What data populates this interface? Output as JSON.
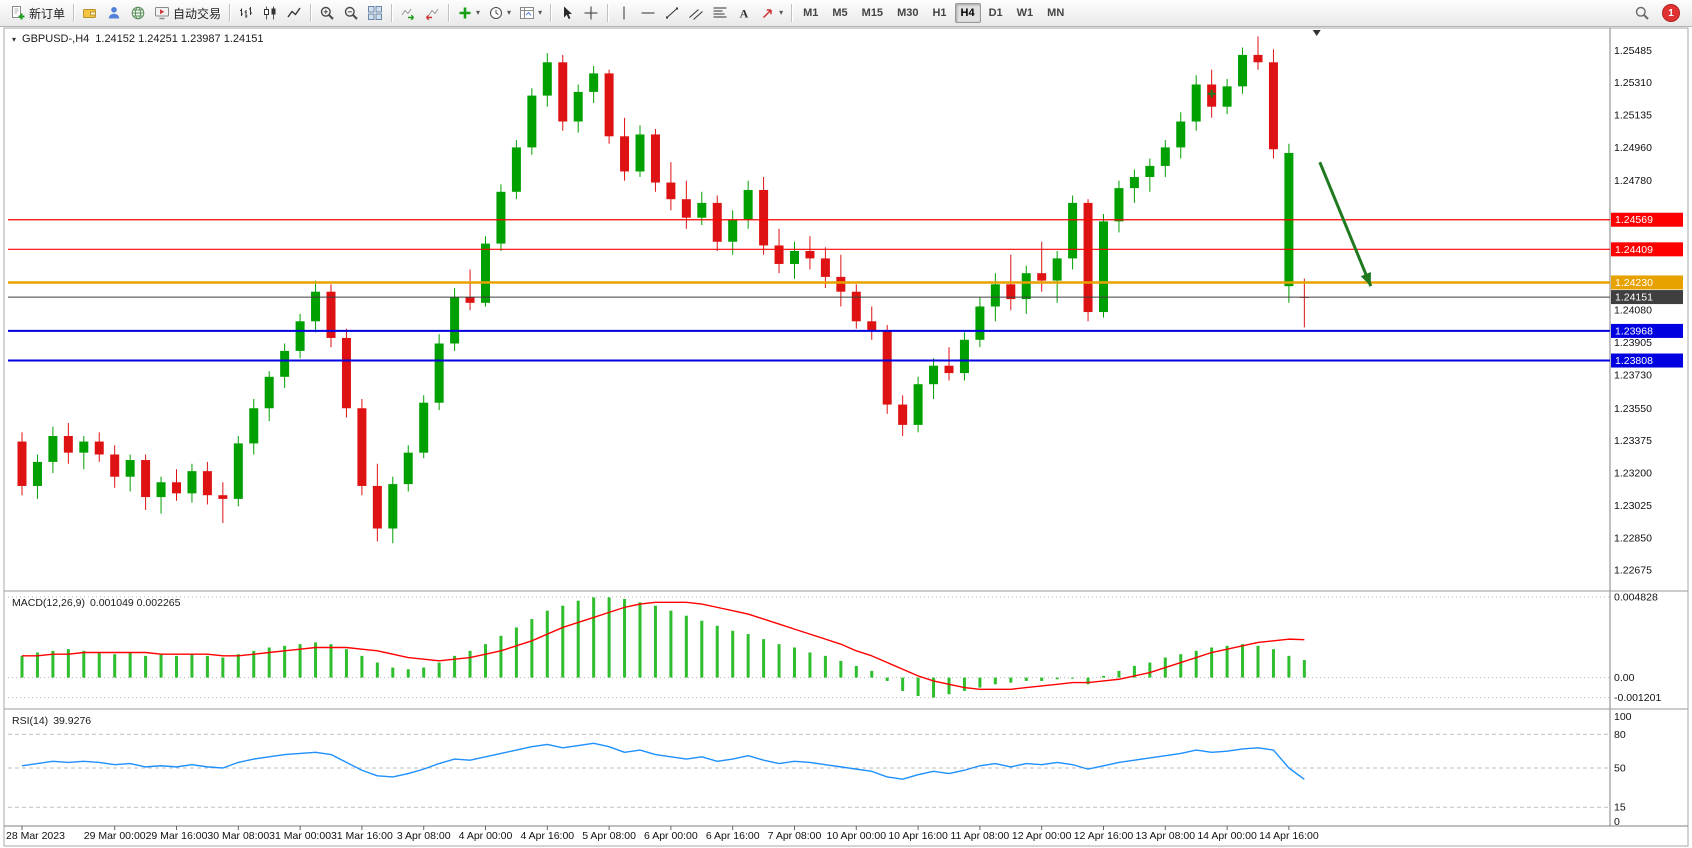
{
  "toolbar": {
    "groups": [
      {
        "items": [
          {
            "name": "new-order-button",
            "icon": "new-order",
            "label": "新订单"
          }
        ]
      },
      {
        "items": [
          {
            "name": "wallet-button",
            "icon": "wallet"
          },
          {
            "name": "profile-button",
            "icon": "person"
          },
          {
            "name": "market-button",
            "icon": "globe"
          },
          {
            "name": "autotrading-button",
            "icon": "autotrading",
            "label": "自动交易"
          }
        ]
      },
      {
        "items": [
          {
            "name": "bar-chart-button",
            "icon": "bars"
          },
          {
            "name": "candlestick-button",
            "icon": "candles"
          },
          {
            "name": "line-chart-button",
            "icon": "linechart"
          }
        ]
      },
      {
        "items": [
          {
            "name": "zoom-in-button",
            "icon": "zoom-in"
          },
          {
            "name": "zoom-out-button",
            "icon": "zoom-out"
          },
          {
            "name": "tile-windows-button",
            "icon": "tile"
          }
        ]
      },
      {
        "items": [
          {
            "name": "auto-scroll-button",
            "icon": "autoscroll"
          },
          {
            "name": "chart-shift-button",
            "icon": "chartshift"
          }
        ]
      },
      {
        "items": [
          {
            "name": "add-indicator-button",
            "icon": "add-indicator",
            "dropdown": true
          },
          {
            "name": "periods-button",
            "icon": "clock",
            "dropdown": true
          },
          {
            "name": "templates-button",
            "icon": "template",
            "dropdown": true
          }
        ]
      },
      {
        "items": [
          {
            "name": "cursor-button",
            "icon": "cursor"
          },
          {
            "name": "crosshair-button",
            "icon": "crosshair"
          }
        ]
      },
      {
        "items": [
          {
            "name": "vertical-line-button",
            "icon": "vline"
          },
          {
            "name": "horizontal-line-button",
            "icon": "hline"
          },
          {
            "name": "trendline-button",
            "icon": "trendline"
          },
          {
            "name": "channel-button",
            "icon": "channel"
          },
          {
            "name": "fibonacci-button",
            "icon": "fibo"
          },
          {
            "name": "text-button",
            "icon": "text"
          },
          {
            "name": "arrows-button",
            "icon": "arrows",
            "dropdown": true
          }
        ]
      }
    ],
    "timeframes": [
      "M1",
      "M5",
      "M15",
      "M30",
      "H1",
      "H4",
      "D1",
      "W1",
      "MN"
    ],
    "active_timeframe": "H4",
    "right_items": [
      {
        "name": "symbol-search-button",
        "icon": "search"
      }
    ],
    "notification_count": "1"
  },
  "chart": {
    "title_symbol": "GBPUSD-,H4",
    "title_ohlc": "1.24152 1.24251 1.23987 1.24151"
  },
  "colors": {
    "candle_up": "#00A000",
    "candle_down": "#DE1212",
    "hline_red": "#FF0000",
    "hline_blue": "#0000E0",
    "hline_gold": "#E8A200",
    "price_line": "#3F3F3F",
    "macd_hist": "#2EBE2E",
    "macd_signal": "#FF0000",
    "rsi_line": "#1E90FF",
    "arrow_green": "#1F7A1F"
  },
  "chart_data": {
    "type": "candlestick",
    "symbol": "GBPUSD-",
    "timeframe": "H4",
    "ohlc_current": {
      "open": "1.24152",
      "high": "1.24251",
      "low": "1.23987",
      "close": "1.24151"
    },
    "price_axis": {
      "min": 1.226,
      "max": 1.256,
      "ticks": [
        [
          1.25485,
          "1.25485"
        ],
        [
          1.2531,
          "1.25310"
        ],
        [
          1.25135,
          "1.25135"
        ],
        [
          1.2496,
          "1.24960"
        ],
        [
          1.2478,
          "1.24780"
        ],
        [
          1.2408,
          "1.24080"
        ],
        [
          1.23905,
          "1.23905"
        ],
        [
          1.2373,
          "1.23730"
        ],
        [
          1.2355,
          "1.23550"
        ],
        [
          1.23375,
          "1.23375"
        ],
        [
          1.232,
          "1.23200"
        ],
        [
          1.23025,
          "1.23025"
        ],
        [
          1.2285,
          "1.22850"
        ],
        [
          1.22675,
          "1.22675"
        ]
      ]
    },
    "hlines": [
      {
        "v": 1.24569,
        "color": "#FF0000",
        "w": 1.2,
        "label": "1.24569"
      },
      {
        "v": 1.24409,
        "color": "#FF0000",
        "w": 1.2,
        "label": "1.24409"
      },
      {
        "v": 1.2423,
        "color": "#E8A200",
        "w": 2.5,
        "label": "1.24230"
      },
      {
        "v": 1.23968,
        "color": "#0000E0",
        "w": 2,
        "label": "1.23968"
      },
      {
        "v": 1.23808,
        "color": "#0000E0",
        "w": 2,
        "label": "1.23808"
      }
    ],
    "current_price": {
      "v": 1.24151,
      "label": "1.24151"
    },
    "candles": [
      [
        1.2337,
        1.2342,
        1.2308,
        1.2313
      ],
      [
        1.2313,
        1.233,
        1.2306,
        1.2326
      ],
      [
        1.2326,
        1.2345,
        1.232,
        1.234
      ],
      [
        1.234,
        1.2347,
        1.2325,
        1.2331
      ],
      [
        1.2331,
        1.234,
        1.2322,
        1.2337
      ],
      [
        1.2337,
        1.2342,
        1.2326,
        1.233
      ],
      [
        1.233,
        1.2335,
        1.2312,
        1.2318
      ],
      [
        1.2318,
        1.233,
        1.231,
        1.2327
      ],
      [
        1.2327,
        1.233,
        1.23,
        1.2307
      ],
      [
        1.2307,
        1.2318,
        1.2298,
        1.2315
      ],
      [
        1.2315,
        1.2322,
        1.2305,
        1.2309
      ],
      [
        1.2309,
        1.2325,
        1.2304,
        1.2321
      ],
      [
        1.2321,
        1.2326,
        1.2303,
        1.2308
      ],
      [
        1.2308,
        1.2315,
        1.2293,
        1.2306
      ],
      [
        1.2306,
        1.234,
        1.2302,
        1.2336
      ],
      [
        1.2336,
        1.236,
        1.233,
        1.2355
      ],
      [
        1.2355,
        1.2375,
        1.2348,
        1.2372
      ],
      [
        1.2372,
        1.239,
        1.2366,
        1.2386
      ],
      [
        1.2386,
        1.2406,
        1.2382,
        1.2402
      ],
      [
        1.2402,
        1.2424,
        1.2396,
        1.2418
      ],
      [
        1.2418,
        1.2422,
        1.2388,
        1.2393
      ],
      [
        1.2393,
        1.2398,
        1.235,
        1.2355
      ],
      [
        1.2355,
        1.236,
        1.2308,
        1.2313
      ],
      [
        1.2313,
        1.2325,
        1.2283,
        1.229
      ],
      [
        1.229,
        1.2318,
        1.2282,
        1.2314
      ],
      [
        1.2314,
        1.2335,
        1.231,
        1.2331
      ],
      [
        1.2331,
        1.2362,
        1.2328,
        1.2358
      ],
      [
        1.2358,
        1.2395,
        1.2354,
        1.239
      ],
      [
        1.239,
        1.242,
        1.2386,
        1.2415
      ],
      [
        1.2415,
        1.243,
        1.2408,
        1.2412
      ],
      [
        1.2412,
        1.2448,
        1.241,
        1.2444
      ],
      [
        1.2444,
        1.2476,
        1.244,
        1.2472
      ],
      [
        1.2472,
        1.25,
        1.2468,
        1.2496
      ],
      [
        1.2496,
        1.2528,
        1.2492,
        1.2524
      ],
      [
        1.2524,
        1.2547,
        1.2518,
        1.2542
      ],
      [
        1.2542,
        1.2546,
        1.2505,
        1.251
      ],
      [
        1.251,
        1.253,
        1.2504,
        1.2526
      ],
      [
        1.2526,
        1.254,
        1.252,
        1.2536
      ],
      [
        1.2536,
        1.2538,
        1.2498,
        1.2502
      ],
      [
        1.2502,
        1.2512,
        1.2478,
        1.2483
      ],
      [
        1.2483,
        1.2508,
        1.248,
        1.2503
      ],
      [
        1.2503,
        1.2506,
        1.2472,
        1.2477
      ],
      [
        1.2477,
        1.2488,
        1.2462,
        1.2468
      ],
      [
        1.2468,
        1.2478,
        1.2452,
        1.2458
      ],
      [
        1.2458,
        1.2472,
        1.2454,
        1.2466
      ],
      [
        1.2466,
        1.247,
        1.244,
        1.2445
      ],
      [
        1.2445,
        1.2462,
        1.2438,
        1.2457
      ],
      [
        1.2457,
        1.2478,
        1.2452,
        1.2473
      ],
      [
        1.2473,
        1.248,
        1.2438,
        1.2443
      ],
      [
        1.2443,
        1.2452,
        1.2428,
        1.2433
      ],
      [
        1.2433,
        1.2445,
        1.2425,
        1.244
      ],
      [
        1.244,
        1.2448,
        1.243,
        1.2436
      ],
      [
        1.2436,
        1.2442,
        1.242,
        1.2426
      ],
      [
        1.2426,
        1.2438,
        1.241,
        1.2418
      ],
      [
        1.2418,
        1.2422,
        1.2398,
        1.2402
      ],
      [
        1.2402,
        1.241,
        1.2392,
        1.2397
      ],
      [
        1.2397,
        1.24,
        1.2352,
        1.2357
      ],
      [
        1.2357,
        1.2362,
        1.234,
        1.2346
      ],
      [
        1.2346,
        1.2372,
        1.2342,
        1.2368
      ],
      [
        1.2368,
        1.2382,
        1.236,
        1.2378
      ],
      [
        1.2378,
        1.2388,
        1.237,
        1.2374
      ],
      [
        1.2374,
        1.2396,
        1.237,
        1.2392
      ],
      [
        1.2392,
        1.2415,
        1.2388,
        1.241
      ],
      [
        1.241,
        1.2428,
        1.2402,
        1.2422
      ],
      [
        1.2422,
        1.2438,
        1.2408,
        1.2414
      ],
      [
        1.2414,
        1.2432,
        1.2406,
        1.2428
      ],
      [
        1.2428,
        1.2445,
        1.2418,
        1.2424
      ],
      [
        1.2424,
        1.244,
        1.2412,
        1.2436
      ],
      [
        1.2436,
        1.247,
        1.243,
        1.2466
      ],
      [
        1.2466,
        1.2468,
        1.2402,
        1.2407
      ],
      [
        1.2407,
        1.246,
        1.2404,
        1.2456
      ],
      [
        1.2456,
        1.2478,
        1.245,
        1.2474
      ],
      [
        1.2474,
        1.2484,
        1.2466,
        1.248
      ],
      [
        1.248,
        1.249,
        1.2472,
        1.2486
      ],
      [
        1.2486,
        1.25,
        1.248,
        1.2496
      ],
      [
        1.2496,
        1.2515,
        1.249,
        1.251
      ],
      [
        1.251,
        1.2535,
        1.2505,
        1.253
      ],
      [
        1.253,
        1.2538,
        1.2512,
        1.2518
      ],
      [
        1.2518,
        1.2533,
        1.2514,
        1.2529
      ],
      [
        1.2529,
        1.255,
        1.2525,
        1.2546
      ],
      [
        1.2546,
        1.2556,
        1.2538,
        1.2542
      ],
      [
        1.2542,
        1.2549,
        1.249,
        1.2495
      ],
      [
        1.2421,
        1.2498,
        1.2412,
        1.2493
      ],
      [
        1.24152,
        1.24251,
        1.23987,
        1.24151
      ]
    ],
    "time_labels": [
      {
        "text": "28 Mar 2023",
        "bar": 0
      },
      {
        "text": "29 Mar 00:00",
        "bar": 6
      },
      {
        "text": "29 Mar 16:00",
        "bar": 10
      },
      {
        "text": "30 Mar 08:00",
        "bar": 14
      },
      {
        "text": "31 Mar 00:00",
        "bar": 18
      },
      {
        "text": "31 Mar 16:00",
        "bar": 22
      },
      {
        "text": "3 Apr 08:00",
        "bar": 26
      },
      {
        "text": "4 Apr 00:00",
        "bar": 30
      },
      {
        "text": "4 Apr 16:00",
        "bar": 34
      },
      {
        "text": "5 Apr 08:00",
        "bar": 38
      },
      {
        "text": "6 Apr 00:00",
        "bar": 42
      },
      {
        "text": "6 Apr 16:00",
        "bar": 46
      },
      {
        "text": "7 Apr 08:00",
        "bar": 50
      },
      {
        "text": "10 Apr 00:00",
        "bar": 54
      },
      {
        "text": "10 Apr 16:00",
        "bar": 58
      },
      {
        "text": "11 Apr 08:00",
        "bar": 62
      },
      {
        "text": "12 Apr 00:00",
        "bar": 66
      },
      {
        "text": "12 Apr 16:00",
        "bar": 70
      },
      {
        "text": "13 Apr 08:00",
        "bar": 74
      },
      {
        "text": "14 Apr 00:00",
        "bar": 78
      },
      {
        "text": "14 Apr 16:00",
        "bar": 82
      }
    ],
    "arrow": {
      "from": {
        "bar": 84.0,
        "price": 1.2488
      },
      "to": {
        "bar": 87.3,
        "price": 1.2421
      }
    },
    "plus_marker": {
      "bar": 77,
      "price": 1.2525
    },
    "shift_marker_bar": 83.8,
    "macd": {
      "label": "MACD(12,26,9)",
      "values_label": "0.001049 0.002265",
      "range": [
        -0.0017,
        0.005
      ],
      "axis": [
        [
          0.004828,
          "0.004828"
        ],
        [
          0,
          "0.00"
        ],
        [
          -0.001201,
          "-0.001201"
        ]
      ],
      "hist": [
        0.0013,
        0.0015,
        0.0016,
        0.0017,
        0.0016,
        0.0015,
        0.0014,
        0.0015,
        0.0013,
        0.0014,
        0.0013,
        0.0014,
        0.0013,
        0.0012,
        0.0014,
        0.0016,
        0.0018,
        0.0019,
        0.002,
        0.0021,
        0.002,
        0.0017,
        0.0013,
        0.0009,
        0.0006,
        0.0005,
        0.0006,
        0.0009,
        0.0013,
        0.0016,
        0.002,
        0.0025,
        0.003,
        0.0035,
        0.004,
        0.0043,
        0.0046,
        0.0048,
        0.0048,
        0.0047,
        0.0045,
        0.0043,
        0.004,
        0.0037,
        0.0034,
        0.0031,
        0.0028,
        0.0026,
        0.0023,
        0.002,
        0.0018,
        0.0015,
        0.0013,
        0.001,
        0.0007,
        0.0004,
        -0.0002,
        -0.0008,
        -0.0011,
        -0.0012,
        -0.001,
        -0.0008,
        -0.0006,
        -0.0004,
        -0.0003,
        -0.0002,
        -0.0002,
        -0.0001,
        0.0,
        -0.0004,
        0.0001,
        0.0004,
        0.0007,
        0.0009,
        0.0012,
        0.0014,
        0.0016,
        0.0018,
        0.0019,
        0.002,
        0.0019,
        0.0017,
        0.0013,
        0.001049
      ],
      "signal": [
        0.0013,
        0.0013,
        0.0014,
        0.0014,
        0.0015,
        0.0015,
        0.0015,
        0.0015,
        0.0015,
        0.0014,
        0.0014,
        0.0014,
        0.0014,
        0.0013,
        0.0013,
        0.0014,
        0.0015,
        0.0016,
        0.0017,
        0.0018,
        0.0018,
        0.0018,
        0.0017,
        0.0016,
        0.0014,
        0.0012,
        0.0011,
        0.001,
        0.0011,
        0.0012,
        0.0014,
        0.0016,
        0.0019,
        0.0022,
        0.0026,
        0.003,
        0.0033,
        0.0036,
        0.0039,
        0.0042,
        0.0044,
        0.0045,
        0.0045,
        0.0045,
        0.0044,
        0.0042,
        0.004,
        0.0038,
        0.0035,
        0.0032,
        0.0029,
        0.0026,
        0.0023,
        0.002,
        0.0016,
        0.0013,
        0.0009,
        0.0005,
        0.0001,
        -0.0002,
        -0.0004,
        -0.0006,
        -0.0007,
        -0.0007,
        -0.0007,
        -0.0006,
        -0.0005,
        -0.0004,
        -0.0003,
        -0.0003,
        -0.0002,
        -0.0001,
        0.0001,
        0.0003,
        0.0006,
        0.0009,
        0.0012,
        0.0015,
        0.0017,
        0.0019,
        0.0021,
        0.0022,
        0.0023,
        0.002265
      ]
    },
    "rsi": {
      "label": "RSI(14)",
      "value_label": "39.9276",
      "range": [
        0,
        100
      ],
      "levels": [
        {
          "value": 100,
          "label": "100",
          "line": false
        },
        {
          "value": 80,
          "label": "80",
          "line": true
        },
        {
          "value": 50,
          "label": "50",
          "line": true
        },
        {
          "value": 15,
          "label": "15",
          "line": true
        },
        {
          "value": 0,
          "label": "0",
          "line": false
        }
      ],
      "values": [
        52,
        54,
        56,
        55,
        56,
        55,
        53,
        54,
        51,
        52,
        51,
        53,
        51,
        50,
        55,
        58,
        60,
        62,
        63,
        64,
        62,
        55,
        48,
        43,
        42,
        45,
        49,
        54,
        58,
        57,
        60,
        63,
        66,
        69,
        71,
        68,
        70,
        72,
        69,
        64,
        66,
        62,
        60,
        58,
        60,
        56,
        58,
        61,
        57,
        54,
        56,
        55,
        53,
        51,
        49,
        47,
        42,
        40,
        44,
        47,
        45,
        48,
        52,
        54,
        51,
        54,
        53,
        55,
        53,
        49,
        52,
        55,
        57,
        59,
        61,
        63,
        66,
        64,
        65,
        67,
        68,
        66,
        50,
        39.93
      ]
    }
  }
}
